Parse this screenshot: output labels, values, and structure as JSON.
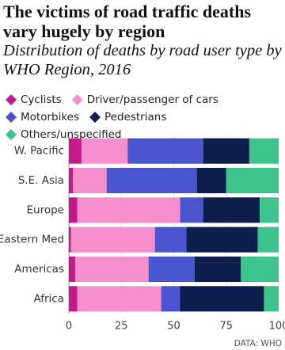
{
  "chart_data": {
    "type": "stacked-bar-horizontal",
    "title": "The victims of road traffic deaths vary hugely by region",
    "subtitle": "Distribution of deaths by road user type by WHO Region, 2016",
    "source": "DATA: WHO",
    "categories": [
      "W. Pacific",
      "S.E. Asia",
      "Europe",
      "Eastern Med",
      "Americas",
      "Africa"
    ],
    "series": [
      {
        "name": "Cyclists",
        "color": "#c4198c",
        "values": [
          6,
          2,
          4,
          1,
          3,
          4
        ]
      },
      {
        "name": "Driver/passenger of cars",
        "color": "#f68fce",
        "values": [
          22,
          16,
          49,
          40,
          35,
          40
        ]
      },
      {
        "name": "Motorbikes",
        "color": "#4a55cf",
        "values": [
          36,
          43,
          11,
          15,
          22,
          9
        ]
      },
      {
        "name": "Pedestrians",
        "color": "#0e1e4c",
        "values": [
          22,
          14,
          27,
          34,
          22,
          40
        ]
      },
      {
        "name": "Others/unspecified",
        "color": "#3dc38b",
        "values": [
          14,
          25,
          9,
          10,
          18,
          7
        ]
      }
    ],
    "xlim": [
      0,
      100
    ],
    "xticks": [
      0,
      25,
      50,
      75,
      100
    ],
    "grid": true
  }
}
